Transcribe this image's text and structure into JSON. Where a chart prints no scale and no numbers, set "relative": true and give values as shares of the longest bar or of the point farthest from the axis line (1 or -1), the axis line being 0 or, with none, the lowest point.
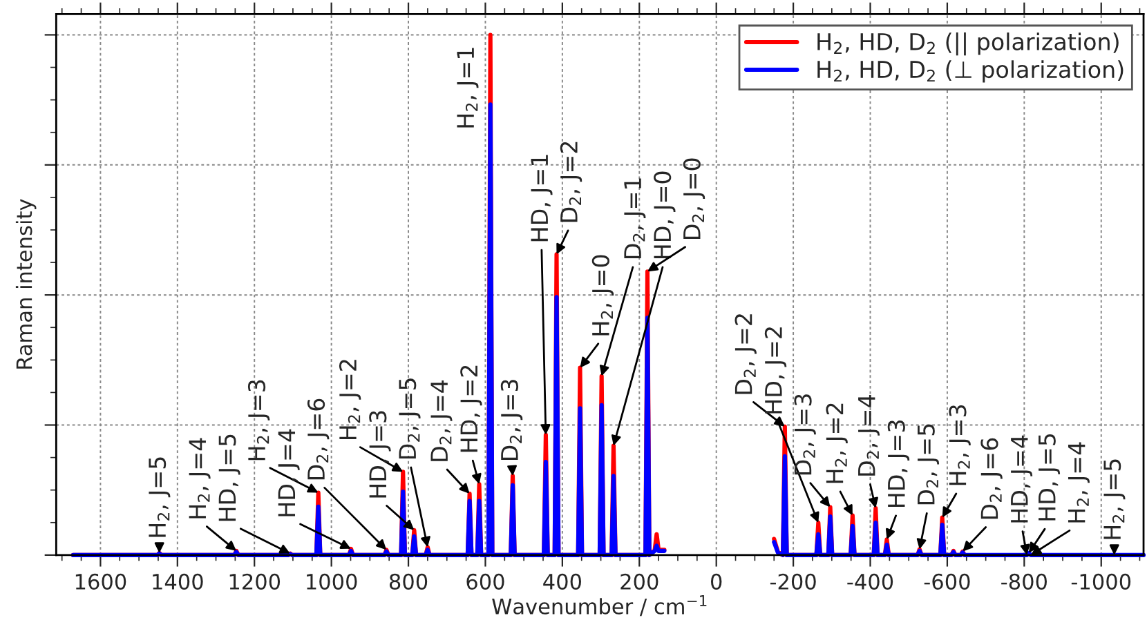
{
  "chart_data": {
    "type": "line",
    "relative": true,
    "xlabel": "Wavenumber / cm$^{−1}$",
    "ylabel": "Raman intensity",
    "xlim": [
      1715,
      -1110
    ],
    "xticks": [
      1600,
      1400,
      1200,
      1000,
      800,
      600,
      400,
      200,
      0,
      -200,
      -400,
      -600,
      -800,
      -1000
    ],
    "grid": true,
    "legend": "top right",
    "tick_labels": "x",
    "x": [
      1671,
      1452,
      1447,
      1442,
      1252,
      1247,
      1242,
      1112,
      1107,
      1102,
      1039,
      1034,
      1029,
      954,
      949,
      944,
      862,
      857,
      852,
      819,
      814,
      809,
      790,
      785,
      780,
      755,
      750,
      745,
      646,
      641,
      636,
      621,
      616,
      611,
      592,
      587,
      582,
      534,
      529,
      524,
      448,
      443,
      438,
      420,
      415,
      410,
      359,
      354,
      349,
      303,
      298,
      293,
      272,
      267,
      262,
      184,
      179,
      174,
      160,
      155,
      150,
      135,
      0,
      -150,
      -160,
      -173,
      -178,
      -183,
      -260,
      -265,
      -270,
      -291,
      -296,
      -301,
      -349,
      -354,
      -359,
      -409,
      -414,
      -419,
      -438,
      -443,
      -448,
      -523,
      -528,
      -533,
      -582,
      -587,
      -592,
      -611,
      -616,
      -621,
      -635,
      -640,
      -645,
      -807,
      -812,
      -817,
      -1110
    ],
    "series": [
      {
        "name": "H$_{2}$, HD, D$_{2}$ (|| polarization)",
        "color": "#ff0000",
        "values": [
          0,
          0,
          0.004,
          0,
          0,
          0.008,
          0,
          0,
          0.003,
          0,
          0,
          0.12,
          0,
          0,
          0.012,
          0,
          0,
          0.01,
          0,
          0,
          0.16,
          0,
          0,
          0.048,
          0,
          0,
          0.015,
          0,
          0,
          0.118,
          0,
          0,
          0.136,
          0,
          0,
          1,
          0,
          0,
          0.152,
          0,
          0,
          0.231,
          0,
          0,
          0.578,
          0,
          0,
          0.36,
          0,
          0,
          0.344,
          0,
          0,
          0.21,
          0,
          0,
          0.545,
          0,
          0.01,
          0.04,
          0.01,
          0.01,
          null,
          0.031,
          0.006,
          0,
          0.247,
          0,
          0,
          0.062,
          0,
          0,
          0.092,
          0,
          0,
          0.076,
          0,
          0,
          0.09,
          0,
          0,
          0.03,
          0,
          0,
          0.011,
          0,
          0,
          0.072,
          0,
          0,
          0.008,
          0,
          0,
          0.007,
          0,
          null,
          null,
          null,
          null
        ]
      },
      {
        "name": "H$_{2}$, HD, D$_{2}$ (⊥ polarization)",
        "color": "#0000ff",
        "values": [
          0,
          0,
          0.003,
          0,
          0,
          0.006,
          0,
          0,
          0.002,
          0,
          0,
          0.093,
          0,
          0,
          0.008,
          0,
          0,
          0.007,
          0,
          0,
          0.122,
          0,
          0,
          0.036,
          0,
          0,
          0.01,
          0,
          0,
          0.104,
          0,
          0,
          0.104,
          0,
          0,
          0.866,
          0,
          0,
          0.134,
          0,
          0,
          0.179,
          0,
          0,
          0.496,
          0,
          0,
          0.282,
          0,
          0,
          0.288,
          0,
          0,
          0.152,
          0,
          0,
          0.456,
          0,
          0.008,
          0.018,
          0.008,
          0.008,
          null,
          0.025,
          0.005,
          0,
          0.19,
          0,
          0,
          0.04,
          0,
          0,
          0.074,
          0,
          0,
          0.056,
          0,
          0,
          0.062,
          0,
          0,
          0.02,
          0,
          0,
          0.008,
          0,
          0,
          0.058,
          0,
          0,
          0.006,
          0,
          0,
          0.005,
          0,
          0,
          0.004,
          0,
          0
        ]
      }
    ],
    "annotations": [
      {
        "text": "H$_{2}$, J=5",
        "x": 1447,
        "y": 0.004
      },
      {
        "text": "H$_{2}$, J=4",
        "x": 1247,
        "y": 0.008
      },
      {
        "text": "HD, J=5",
        "x": 1107,
        "y": 0.003
      },
      {
        "text": "H$_{2}$, J=3",
        "x": 1034,
        "y": 0.12
      },
      {
        "text": "HD, J=4",
        "x": 949,
        "y": 0.012
      },
      {
        "text": "D$_{2}$, J=6",
        "x": 857,
        "y": 0.01
      },
      {
        "text": "H$_{2}$, J=2",
        "x": 814,
        "y": 0.16
      },
      {
        "text": "HD, J=3",
        "x": 785,
        "y": 0.048
      },
      {
        "text": "D$_{2}$, J=5",
        "x": 750,
        "y": 0.015
      },
      {
        "text": "D$_{2}$, J=4",
        "x": 641,
        "y": 0.118
      },
      {
        "text": "HD, J=2",
        "x": 616,
        "y": 0.136
      },
      {
        "text": "H$_{2}$, J=1",
        "x": 587,
        "y": 1
      },
      {
        "text": "D$_{2}$, J=3",
        "x": 529,
        "y": 0.152
      },
      {
        "text": "HD, J=1",
        "x": 443,
        "y": 0.231
      },
      {
        "text": "D$_{2}$, J=2",
        "x": 415,
        "y": 0.578
      },
      {
        "text": "H$_{2}$, J=0",
        "x": 354,
        "y": 0.36
      },
      {
        "text": "D$_{2}$, J=1",
        "x": 298,
        "y": 0.344
      },
      {
        "text": "HD, J=0",
        "x": 267,
        "y": 0.21
      },
      {
        "text": "D$_{2}$, J=0",
        "x": 179,
        "y": 0.545
      },
      {
        "text": "D$_{2}$, J=2",
        "x": -178,
        "y": 0.247
      },
      {
        "text": "HD, J=2",
        "x": -265,
        "y": 0.062
      },
      {
        "text": "D$_{2}$, J=3",
        "x": -296,
        "y": 0.092
      },
      {
        "text": "H$_{2}$, J=2",
        "x": -354,
        "y": 0.076
      },
      {
        "text": "D$_{2}$, J=4",
        "x": -414,
        "y": 0.09
      },
      {
        "text": "HD, J=3",
        "x": -443,
        "y": 0.03
      },
      {
        "text": "D$_{2}$, J=5",
        "x": -528,
        "y": 0.011
      },
      {
        "text": "H$_{2}$, J=3",
        "x": -587,
        "y": 0.072
      },
      {
        "text": "D$_{2}$, J=6",
        "x": -640,
        "y": 0.007
      },
      {
        "text": "HD, J=4",
        "x": -807,
        "y": 0
      },
      {
        "text": "HD, J=5",
        "x": -812,
        "y": 0.004
      },
      {
        "text": "H$_{2}$, J=4",
        "x": -817,
        "y": 0
      },
      {
        "text": "H$_{2}$, J=5",
        "x": -1034,
        "y": 0
      }
    ]
  }
}
